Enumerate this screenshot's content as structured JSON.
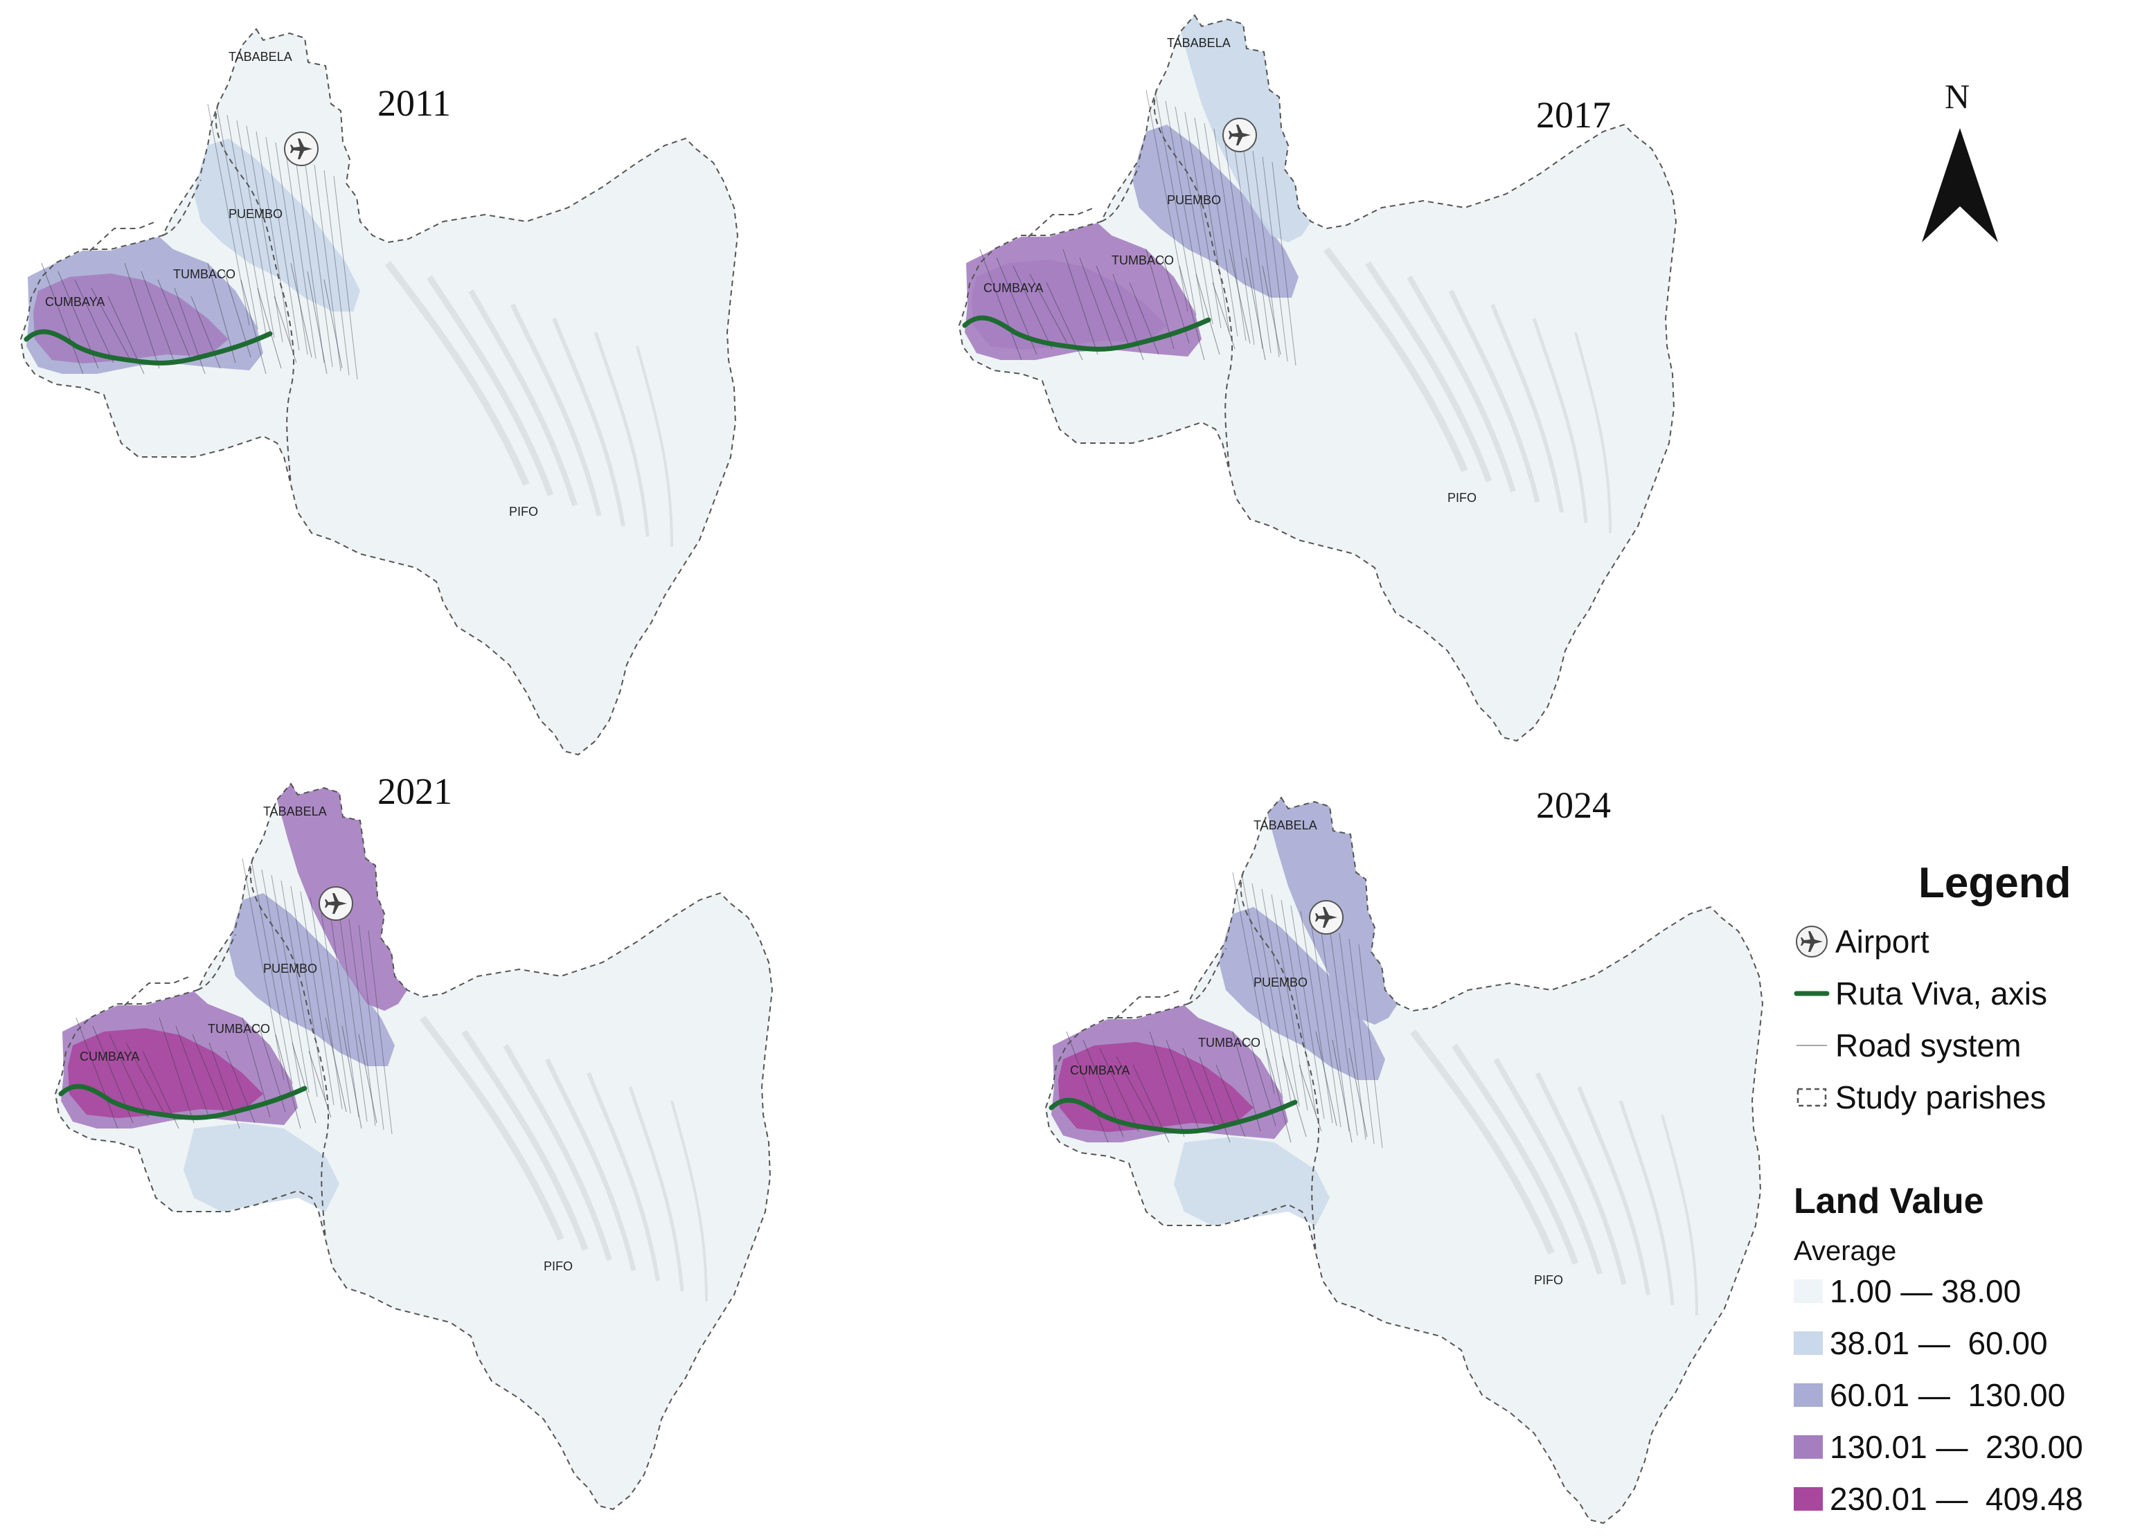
{
  "panels": [
    {
      "year": "2011"
    },
    {
      "year": "2017"
    },
    {
      "year": "2021"
    },
    {
      "year": "2024"
    }
  ],
  "places": {
    "tababela": "TABABELA",
    "puembo": "PUEMBO",
    "tumbaco": "TUMBACO",
    "cumbaya": "CUMBAYA",
    "pifo": "PIFO"
  },
  "north": {
    "label": "N"
  },
  "legend": {
    "title": "Legend",
    "items": [
      {
        "label": "Airport",
        "icon": "airport-icon"
      },
      {
        "label": "Ruta Viva, axis",
        "color": "#1e6b32"
      },
      {
        "label": "Road system",
        "color": "#888888"
      },
      {
        "label": "Study parishes",
        "color": "#555555"
      }
    ],
    "land_value_title": "Land Value",
    "land_value_subtitle": "Average",
    "classes": [
      {
        "label": "1.00 — 38.00",
        "color": "#eef4f7"
      },
      {
        "label": "38.01 —  60.00",
        "color": "#c9d8ea"
      },
      {
        "label": "60.01 —  130.00",
        "color": "#a9acd4"
      },
      {
        "label": "130.01 —  230.00",
        "color": "#a57ec0"
      },
      {
        "label": "230.01 —  409.48",
        "color": "#a8479d"
      }
    ]
  },
  "colors": {
    "base": "#eef3f5",
    "ruta_viva": "#1e6b32",
    "boundary": "#555555",
    "road": "#3a3a4a"
  }
}
